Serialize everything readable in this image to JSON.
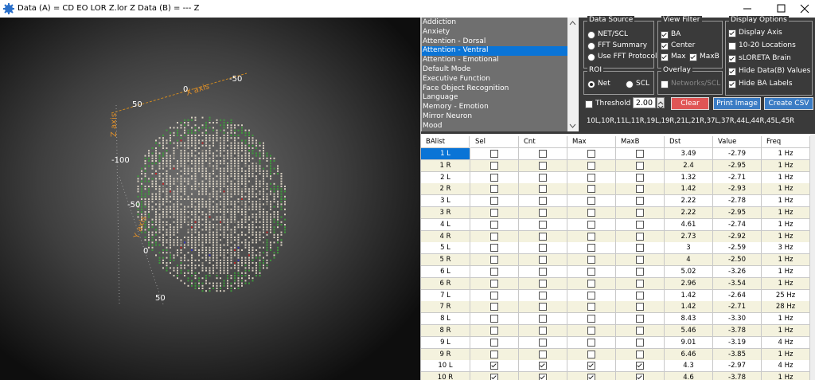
{
  "title_bar": {
    "title": "Data (A) = CD EO LOR Z.lor Z  Data (B) =  --- Z"
  },
  "viewer": {
    "x_axis": "X axis",
    "y_axis": "Y axis",
    "z_axis": "Z axis",
    "tick_labels": [
      "0",
      "-50",
      "50",
      "-100",
      "-50",
      "0",
      "50"
    ]
  },
  "network_list": {
    "items": [
      "Addiction",
      "Anxiety",
      "Attention - Dorsal",
      "Attention - Ventral",
      "Attention - Emotional",
      "Default Mode",
      "Executive Function",
      "Face Object Recognition",
      "Language",
      "Memory - Emotion",
      "Mirror Neuron",
      "Mood"
    ],
    "selected": 3
  },
  "data_source": {
    "title": "Data Source",
    "options": [
      {
        "label": "NET/SCL",
        "selected": false
      },
      {
        "label": "FFT Summary",
        "selected": false
      },
      {
        "label": "Use FFT Protocol",
        "selected": false
      }
    ]
  },
  "view_filter": {
    "title": "View Filter",
    "options": [
      {
        "label": "BA",
        "checked": true
      },
      {
        "label": "Center",
        "checked": true
      },
      {
        "label": "Max",
        "checked": true
      },
      {
        "label": "MaxB",
        "checked": true
      }
    ]
  },
  "display_options": {
    "title": "Display Options",
    "options": [
      {
        "label": "Display Axis",
        "checked": true
      },
      {
        "label": "10-20 Locations",
        "checked": false
      },
      {
        "label": "sLORETA Brain",
        "checked": true
      },
      {
        "label": "Hide  Data(B) Values",
        "checked": true
      },
      {
        "label": "Hide BA Labels",
        "checked": true
      }
    ]
  },
  "roi": {
    "title": "ROI",
    "options": [
      {
        "label": "Net",
        "selected": true
      },
      {
        "label": "SCL",
        "selected": false
      }
    ]
  },
  "overlay": {
    "title": "Overlay",
    "options": [
      {
        "label": "Networks/SCL",
        "checked": false
      }
    ]
  },
  "threshold": {
    "label": "Threshold",
    "checked": false,
    "value": "2.00"
  },
  "buttons": {
    "clear": "Clear",
    "print": "Print Image",
    "csv": "Create  CSV"
  },
  "selection_text": "10L,10R,11L,11R,19L,19R,21L,21R,37L,37R,44L,44R,45L,45R",
  "table": {
    "columns": [
      "BAlist",
      "Sel",
      "Cnt",
      "Max",
      "MaxB",
      "Dst",
      "Value",
      "Freq"
    ],
    "selected_row": 0,
    "rows": [
      {
        "label": "1 L",
        "sel": false,
        "cnt": false,
        "max": false,
        "maxb": false,
        "dst": "3.49",
        "value": "-2.79",
        "freq": "1 Hz"
      },
      {
        "label": "1 R",
        "sel": false,
        "cnt": false,
        "max": false,
        "maxb": false,
        "dst": "2.4",
        "value": "-2.95",
        "freq": "1 Hz"
      },
      {
        "label": "2 L",
        "sel": false,
        "cnt": false,
        "max": false,
        "maxb": false,
        "dst": "1.32",
        "value": "-2.71",
        "freq": "1 Hz"
      },
      {
        "label": "2 R",
        "sel": false,
        "cnt": false,
        "max": false,
        "maxb": false,
        "dst": "1.42",
        "value": "-2.93",
        "freq": "1 Hz"
      },
      {
        "label": "3 L",
        "sel": false,
        "cnt": false,
        "max": false,
        "maxb": false,
        "dst": "2.22",
        "value": "-2.78",
        "freq": "1 Hz"
      },
      {
        "label": "3 R",
        "sel": false,
        "cnt": false,
        "max": false,
        "maxb": false,
        "dst": "2.22",
        "value": "-2.95",
        "freq": "1 Hz"
      },
      {
        "label": "4 L",
        "sel": false,
        "cnt": false,
        "max": false,
        "maxb": false,
        "dst": "4.61",
        "value": "-2.74",
        "freq": "1 Hz"
      },
      {
        "label": "4 R",
        "sel": false,
        "cnt": false,
        "max": false,
        "maxb": false,
        "dst": "2.73",
        "value": "-2.92",
        "freq": "1 Hz"
      },
      {
        "label": "5 L",
        "sel": false,
        "cnt": false,
        "max": false,
        "maxb": false,
        "dst": "3",
        "value": "-2.59",
        "freq": "3 Hz"
      },
      {
        "label": "5 R",
        "sel": false,
        "cnt": false,
        "max": false,
        "maxb": false,
        "dst": "4",
        "value": "-2.50",
        "freq": "1 Hz"
      },
      {
        "label": "6 L",
        "sel": false,
        "cnt": false,
        "max": false,
        "maxb": false,
        "dst": "5.02",
        "value": "-3.26",
        "freq": "1 Hz"
      },
      {
        "label": "6 R",
        "sel": false,
        "cnt": false,
        "max": false,
        "maxb": false,
        "dst": "2.96",
        "value": "-3.54",
        "freq": "1 Hz"
      },
      {
        "label": "7 L",
        "sel": false,
        "cnt": false,
        "max": false,
        "maxb": false,
        "dst": "1.42",
        "value": "-2.64",
        "freq": "25 Hz"
      },
      {
        "label": "7 R",
        "sel": false,
        "cnt": false,
        "max": false,
        "maxb": false,
        "dst": "1.42",
        "value": "-2.71",
        "freq": "28 Hz"
      },
      {
        "label": "8 L",
        "sel": false,
        "cnt": false,
        "max": false,
        "maxb": false,
        "dst": "8.43",
        "value": "-3.30",
        "freq": "1 Hz"
      },
      {
        "label": "8 R",
        "sel": false,
        "cnt": false,
        "max": false,
        "maxb": false,
        "dst": "5.46",
        "value": "-3.78",
        "freq": "1 Hz"
      },
      {
        "label": "9 L",
        "sel": false,
        "cnt": false,
        "max": false,
        "maxb": false,
        "dst": "9.01",
        "value": "-3.19",
        "freq": "4 Hz"
      },
      {
        "label": "9 R",
        "sel": false,
        "cnt": false,
        "max": false,
        "maxb": false,
        "dst": "6.46",
        "value": "-3.85",
        "freq": "1 Hz"
      },
      {
        "label": "10 L",
        "sel": true,
        "cnt": true,
        "max": true,
        "maxb": true,
        "dst": "4.3",
        "value": "-2.97",
        "freq": "4 Hz"
      },
      {
        "label": "10 R",
        "sel": true,
        "cnt": true,
        "max": true,
        "maxb": true,
        "dst": "4.6",
        "value": "-3.78",
        "freq": "1 Hz"
      }
    ]
  }
}
